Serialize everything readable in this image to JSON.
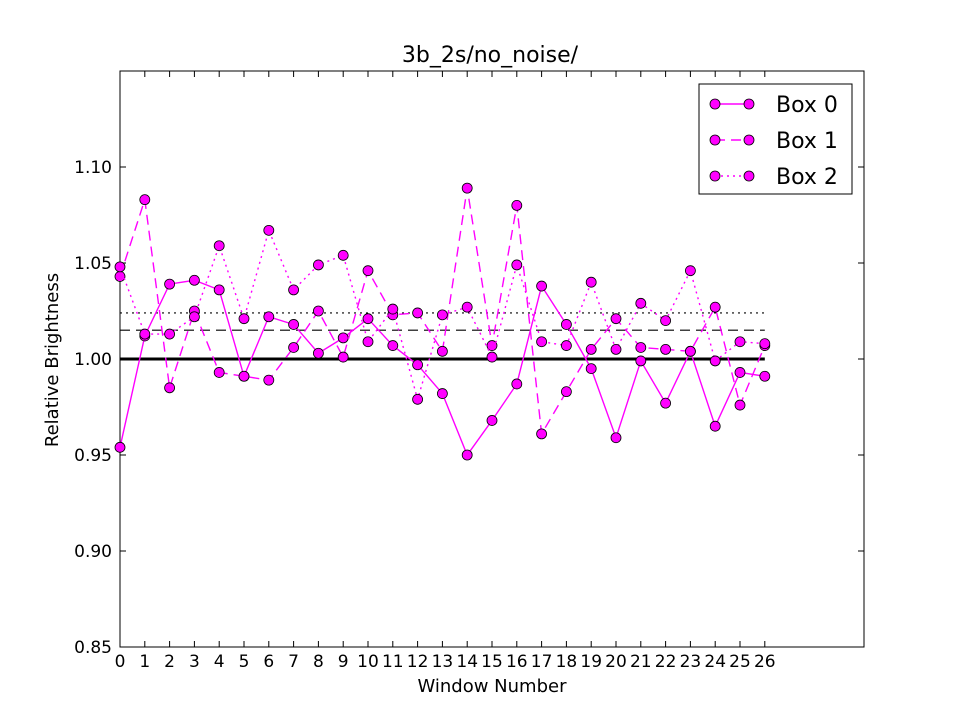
{
  "chart_data": {
    "type": "line",
    "title": "3b_2s/no_noise/",
    "xlabel": "Window Number",
    "ylabel": "Relative Brightness",
    "xlim": [
      0,
      30
    ],
    "ylim": [
      0.85,
      1.15
    ],
    "x": [
      0,
      1,
      2,
      3,
      4,
      5,
      6,
      7,
      8,
      9,
      10,
      11,
      12,
      13,
      14,
      15,
      16,
      17,
      18,
      19,
      20,
      21,
      22,
      23,
      24,
      25,
      26
    ],
    "x_ticks": [
      "0",
      "1",
      "2",
      "3",
      "4",
      "5",
      "6",
      "7",
      "8",
      "9",
      "10",
      "11",
      "12",
      "13",
      "14",
      "15",
      "16",
      "17",
      "18",
      "19",
      "20",
      "21",
      "22",
      "23",
      "24",
      "25",
      "26"
    ],
    "y_ticks": [
      "0.85",
      "0.90",
      "0.95",
      "1.00",
      "1.05",
      "1.10"
    ],
    "y_tick_values": [
      0.85,
      0.9,
      0.95,
      1.0,
      1.05,
      1.1
    ],
    "grid": false,
    "legend_position": "top-right",
    "marker_color": "#ff00ff",
    "series": [
      {
        "name": "Box 0",
        "linestyle": "solid",
        "values": [
          0.954,
          1.012,
          1.039,
          1.041,
          1.036,
          0.991,
          1.022,
          1.018,
          1.003,
          1.011,
          1.021,
          1.007,
          0.997,
          0.982,
          0.95,
          0.968,
          0.987,
          1.038,
          1.018,
          0.995,
          0.959,
          0.999,
          0.977,
          1.004,
          0.965,
          0.993,
          0.991
        ]
      },
      {
        "name": "Box 1",
        "linestyle": "dashed",
        "values": [
          1.043,
          1.083,
          0.985,
          1.025,
          0.993,
          0.991,
          0.989,
          1.006,
          1.025,
          1.001,
          1.046,
          1.023,
          1.024,
          1.004,
          1.089,
          1.007,
          1.08,
          0.961,
          0.983,
          1.005,
          1.021,
          1.006,
          1.005,
          1.004,
          1.027,
          0.976,
          1.007
        ]
      },
      {
        "name": "Box 2",
        "linestyle": "dotted",
        "values": [
          1.048,
          1.013,
          1.013,
          1.022,
          1.059,
          1.021,
          1.067,
          1.036,
          1.049,
          1.054,
          1.009,
          1.026,
          0.979,
          1.023,
          1.027,
          1.001,
          1.049,
          1.009,
          1.007,
          1.04,
          1.005,
          1.029,
          1.02,
          1.046,
          0.999,
          1.009,
          1.008
        ]
      }
    ],
    "reference_lines": [
      {
        "y": 1.0,
        "linestyle": "solid"
      },
      {
        "y": 1.015,
        "linestyle": "dashed"
      },
      {
        "y": 1.024,
        "linestyle": "dotted"
      }
    ]
  }
}
